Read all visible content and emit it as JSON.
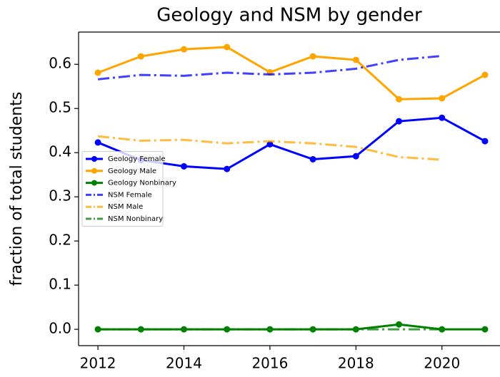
{
  "chart_data": {
    "type": "line",
    "title": "Geology and NSM by gender",
    "y_label": "fraction of total students",
    "x": [
      2012,
      2013,
      2014,
      2015,
      2016,
      2017,
      2018,
      2019,
      2020,
      2021
    ],
    "xlim": [
      2011.55,
      2021.35
    ],
    "xticks": [
      2012,
      2014,
      2016,
      2018,
      2020
    ],
    "ylim": [
      -0.037,
      0.673
    ],
    "yticks": [
      {
        "value": 0,
        "label": "0.0"
      },
      0.1,
      0.2,
      0.3,
      0.4,
      0.5,
      0.6
    ],
    "legend": "center left",
    "series": [
      {
        "name": "Geology Female",
        "color": "#0000ff",
        "linestyle": "solid",
        "marker": "circle",
        "values": [
          0.423,
          0.383,
          0.369,
          0.363,
          0.419,
          0.385,
          0.392,
          0.471,
          0.479,
          0.426
        ]
      },
      {
        "name": "Geology Male",
        "color": "#ffa500",
        "linestyle": "solid",
        "marker": "circle",
        "values": [
          0.581,
          0.618,
          0.634,
          0.639,
          0.582,
          0.618,
          0.61,
          0.521,
          0.523,
          0.576
        ]
      },
      {
        "name": "Geology Nonbinary",
        "color": "#008000",
        "linestyle": "solid",
        "marker": "circle",
        "values": [
          0,
          0,
          0,
          0,
          0,
          0,
          0,
          0.011,
          0,
          0
        ]
      },
      {
        "name": "NSM Female",
        "color": "#0000ff",
        "linestyle": "dashdot",
        "marker": "none",
        "values": [
          0.566,
          0.576,
          0.574,
          0.581,
          0.577,
          0.581,
          0.59,
          0.61,
          0.619,
          null
        ]
      },
      {
        "name": "NSM Male",
        "color": "#ffa500",
        "linestyle": "dashdot",
        "marker": "none",
        "values": [
          0.437,
          0.427,
          0.429,
          0.421,
          0.426,
          0.421,
          0.413,
          0.39,
          0.384,
          null
        ]
      },
      {
        "name": "NSM Nonbinary",
        "color": "#008000",
        "linestyle": "dashdot",
        "marker": "none",
        "values": [
          0,
          0,
          0,
          0,
          0,
          0,
          0,
          0,
          0,
          null
        ]
      }
    ]
  }
}
